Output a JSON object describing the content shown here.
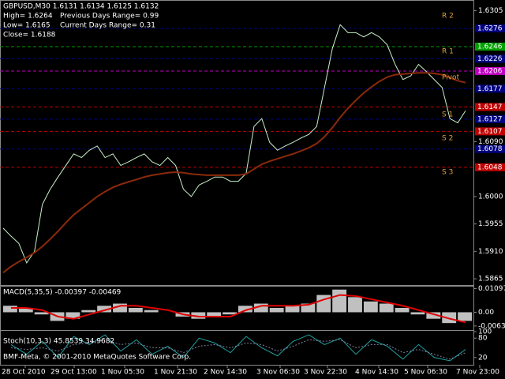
{
  "header": {
    "symbol_line": "GBPUSD,M30  1.6131 1.6134 1.6125 1.6132",
    "high": "High= 1.6264",
    "prev_range": "Previous Days Range= 0.99",
    "low": "Low= 1.6165",
    "curr_range": "Current Days Range= 0.31",
    "close": "Close= 1.6188"
  },
  "pivot_labels": [
    "R 2",
    "R 1",
    "Pivot",
    "S 1",
    "S 2",
    "S 3"
  ],
  "x_labels": [
    "28 Oct 2010",
    "29 Oct 13:00",
    "1 Nov 05:30",
    "1 Nov 21:30",
    "2 Nov 14:30",
    "3 Nov 06:30",
    "3 Nov 22:30",
    "4 Nov 14:30",
    "5 Nov 06:30",
    "7 Nov 23:00"
  ],
  "footer": "BMF-Meta, © 2001-2010 MetaQuotes Software Corp.",
  "chart_data": [
    {
      "type": "line",
      "ylim": [
        1.5856,
        1.632
      ],
      "yticks": [
        1.6305,
        {
          "value": 1.609,
          "label": "1.6090"
        },
        {
          "value": 1.6,
          "label": "1.6000"
        },
        1.5955,
        {
          "value": 1.591,
          "label": "1.5910"
        },
        1.5865
      ],
      "levels": [
        {
          "value": 1.6276,
          "color": "#000080"
        },
        {
          "value": 1.6246,
          "color": "#00a000"
        },
        {
          "value": 1.6226,
          "color": "#000080"
        },
        {
          "value": 1.6206,
          "color": "#c000c0"
        },
        {
          "value": 1.6177,
          "color": "#000080"
        },
        {
          "value": 1.6147,
          "color": "#c00000"
        },
        {
          "value": 1.6127,
          "color": "#000080"
        },
        {
          "value": 1.6107,
          "color": "#c00000"
        },
        {
          "value": 1.6078,
          "color": "#000080"
        },
        {
          "value": 1.6048,
          "color": "#c00000"
        }
      ],
      "series": [
        {
          "color": "#c8f0c8",
          "values": [
            1.5948,
            1.5935,
            1.5923,
            1.5891,
            1.591,
            1.5987,
            1.6012,
            1.6032,
            1.6051,
            1.607,
            1.6064,
            1.6076,
            1.6083,
            1.6064,
            1.607,
            1.6051,
            1.6057,
            1.6064,
            1.607,
            1.6057,
            1.6051,
            1.6064,
            1.6051,
            1.6012,
            1.6,
            1.6019,
            1.6025,
            1.6032,
            1.6032,
            1.6025,
            1.6025,
            1.6038,
            1.6115,
            1.6128,
            1.6089,
            1.6076,
            1.6083,
            1.6089,
            1.6096,
            1.6102,
            1.6115,
            1.6179,
            1.6243,
            1.6282,
            1.6269,
            1.6269,
            1.6262,
            1.6269,
            1.6262,
            1.6249,
            1.6217,
            1.6192,
            1.6198,
            1.6217,
            1.6205,
            1.6192,
            1.6179,
            1.6128,
            1.6121,
            1.6141
          ]
        },
        {
          "color": "#8b2a0a",
          "values": [
            1.5875,
            1.5885,
            1.5893,
            1.59,
            1.5908,
            1.5918,
            1.593,
            1.5943,
            1.5957,
            1.597,
            1.598,
            1.599,
            1.6,
            1.6008,
            1.6015,
            1.602,
            1.6024,
            1.6028,
            1.6032,
            1.6035,
            1.6037,
            1.6039,
            1.604,
            1.6039,
            1.6037,
            1.6036,
            1.6035,
            1.6035,
            1.6035,
            1.6035,
            1.6035,
            1.6037,
            1.6045,
            1.6053,
            1.6058,
            1.6062,
            1.6066,
            1.607,
            1.6075,
            1.608,
            1.6087,
            1.6098,
            1.6113,
            1.613,
            1.6145,
            1.6158,
            1.617,
            1.618,
            1.6189,
            1.6196,
            1.62,
            1.6201,
            1.6202,
            1.6203,
            1.6203,
            1.6202,
            1.62,
            1.6195,
            1.619,
            1.6187
          ]
        }
      ]
    },
    {
      "type": "macd",
      "title": "MACD(5,35,5) -0.00397 -0.00469",
      "ylim": [
        -0.0075,
        0.0115
      ],
      "yticks": [
        0.01097,
        {
          "value": 0,
          "label": "0.00"
        },
        -0.00635
      ],
      "series": [
        {
          "color": "#c0c0c0",
          "values": [
            0.003,
            0.002,
            -0.001,
            -0.004,
            -0.003,
            0.001,
            0.003,
            0.004,
            0.002,
            0.001,
            0,
            -0.002,
            -0.003,
            -0.002,
            -0.001,
            0.003,
            0.004,
            0.002,
            0.003,
            0.004,
            0.008,
            0.0105,
            0.007,
            0.005,
            0.004,
            0.002,
            -0.001,
            -0.003,
            -0.005,
            -0.004
          ]
        },
        {
          "color": "#e00000",
          "values": [
            0.002,
            0.002,
            0.001,
            -0.002,
            -0.003,
            -0.001,
            0.001,
            0.003,
            0.003,
            0.002,
            0.001,
            -0.001,
            -0.002,
            -0.002,
            -0.002,
            0.001,
            0.003,
            0.003,
            0.003,
            0.0035,
            0.006,
            0.008,
            0.0075,
            0.006,
            0.0045,
            0.003,
            0.001,
            -0.001,
            -0.003,
            -0.0047
          ]
        }
      ]
    },
    {
      "type": "stoch",
      "title": "Stoch(10,3,3) 45.8539 34.9682",
      "ylim": [
        0,
        100
      ],
      "yticks": [
        100,
        80,
        20
      ],
      "series": [
        {
          "color": "#20a0a0",
          "values": [
            60,
            30,
            70,
            20,
            85,
            60,
            90,
            40,
            75,
            30,
            55,
            20,
            80,
            65,
            35,
            85,
            50,
            25,
            70,
            90,
            60,
            80,
            30,
            75,
            55,
            15,
            60,
            20,
            10,
            45
          ]
        },
        {
          "color": "#8080a0",
          "values": [
            50,
            45,
            50,
            40,
            60,
            65,
            75,
            60,
            65,
            50,
            50,
            35,
            55,
            60,
            50,
            65,
            60,
            40,
            55,
            75,
            70,
            75,
            50,
            60,
            60,
            35,
            45,
            30,
            15,
            35
          ]
        }
      ]
    }
  ]
}
